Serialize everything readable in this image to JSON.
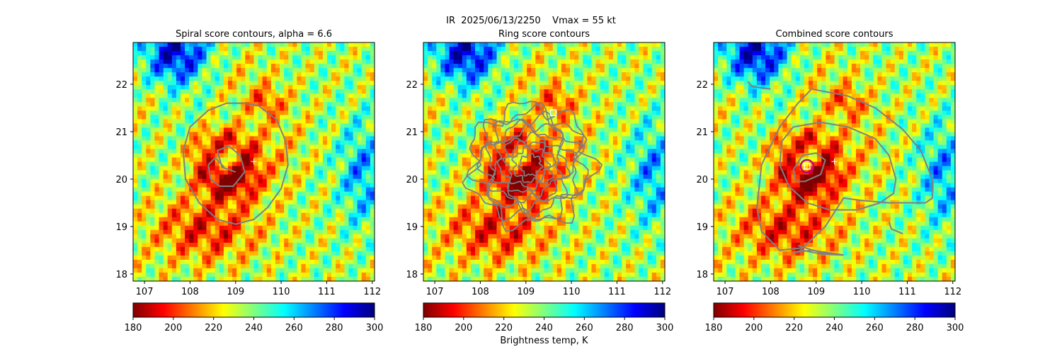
{
  "suptitle": "IR  2025/06/13/2250    Vmax = 55 kt",
  "colorbar_label": "Brightness temp, K",
  "colormap": [
    "#7f0000",
    "#ff0000",
    "#ff7f00",
    "#ffff00",
    "#7fff7f",
    "#00ffff",
    "#007fff",
    "#0000ff",
    "#00007f"
  ],
  "contour_color": "#808080",
  "marker_colors": {
    "center_plus": "#ffffff",
    "square": "#ffffff",
    "circle": "#c00080"
  },
  "chart_data": [
    {
      "type": "heatmap",
      "title": "Spiral score contours, alpha =  6.6",
      "xlim": [
        106.75,
        112.05
      ],
      "ylim": [
        17.85,
        22.88
      ],
      "x_ticks": [
        "107",
        "108",
        "109",
        "110",
        "111",
        "112"
      ],
      "y_ticks": [
        "18",
        "19",
        "20",
        "21",
        "22"
      ],
      "colorbar": {
        "min": 180,
        "max": 300,
        "ticks": [
          "180",
          "200",
          "220",
          "240",
          "260",
          "280",
          "300"
        ]
      },
      "markers": [
        {
          "type": "plus",
          "lon": 109.4,
          "lat": 20.37
        }
      ],
      "contours": [
        {
          "lon": [
            109.5,
            109.9,
            110.1,
            110.15,
            110.0,
            109.7,
            109.4,
            109.0,
            108.6,
            108.2,
            107.9,
            107.85,
            108.0,
            108.4,
            108.8,
            109.2,
            109.5
          ],
          "lat": [
            21.55,
            21.25,
            20.8,
            20.3,
            19.8,
            19.4,
            19.15,
            19.05,
            19.15,
            19.5,
            20.0,
            20.6,
            21.1,
            21.45,
            21.6,
            21.6,
            21.55
          ]
        },
        {
          "lon": [
            108.75,
            108.55,
            108.4,
            108.45,
            108.65,
            108.95,
            109.2,
            109.1,
            108.85,
            108.6,
            108.7,
            109.0
          ],
          "lat": [
            20.25,
            20.45,
            20.3,
            20.0,
            19.85,
            19.85,
            20.15,
            20.5,
            20.7,
            20.6,
            20.25,
            20.15
          ]
        }
      ]
    },
    {
      "type": "heatmap",
      "title": "Ring score contours",
      "xlim": [
        106.75,
        112.05
      ],
      "ylim": [
        17.85,
        22.88
      ],
      "x_ticks": [
        "107",
        "108",
        "109",
        "110",
        "111",
        "112"
      ],
      "y_ticks": [
        "18",
        "19",
        "20",
        "21",
        "22"
      ],
      "colorbar": {
        "min": 180,
        "max": 300,
        "ticks": [
          "180",
          "200",
          "220",
          "240",
          "260",
          "280",
          "300"
        ]
      },
      "markers": [
        {
          "type": "square",
          "lon": 109.6,
          "lat": 21.4
        }
      ],
      "ring_field": {
        "center_lon": 109.1,
        "center_lat": 20.3,
        "radius_deg": 1.3
      }
    },
    {
      "type": "heatmap",
      "title": "Combined score contours",
      "xlim": [
        106.75,
        112.05
      ],
      "ylim": [
        17.85,
        22.88
      ],
      "x_ticks": [
        "107",
        "108",
        "109",
        "110",
        "111",
        "112"
      ],
      "y_ticks": [
        "18",
        "19",
        "20",
        "21",
        "22"
      ],
      "colorbar": {
        "min": 180,
        "max": 300,
        "ticks": [
          "180",
          "200",
          "220",
          "240",
          "260",
          "280",
          "300"
        ]
      },
      "markers": [
        {
          "type": "plus",
          "lon": 109.4,
          "lat": 20.37
        },
        {
          "type": "square",
          "lon": 108.8,
          "lat": 20.27
        },
        {
          "type": "circle",
          "lon": 108.8,
          "lat": 20.27
        }
      ],
      "contours": [
        {
          "lon": [
            109.1,
            109.7,
            110.3,
            110.6,
            110.75,
            110.7,
            110.4,
            109.9,
            109.3,
            108.8,
            108.4,
            108.2,
            108.25,
            108.5,
            109.1
          ],
          "lat": [
            21.2,
            21.1,
            20.85,
            20.5,
            20.0,
            19.7,
            19.5,
            19.35,
            19.35,
            19.5,
            19.85,
            20.3,
            20.8,
            21.1,
            21.2
          ]
        },
        {
          "lon": [
            108.7,
            108.5,
            108.55,
            108.75,
            109.1,
            109.2,
            109.0,
            108.7
          ],
          "lat": [
            20.5,
            20.2,
            19.95,
            19.95,
            20.1,
            20.4,
            20.55,
            20.5
          ]
        },
        {
          "lon": [
            108.9,
            109.7,
            110.3,
            110.9,
            111.3,
            111.55,
            111.55,
            111.4,
            111.2,
            110.9,
            110.6,
            110.0,
            109.6,
            109.2,
            108.7,
            108.2,
            107.8,
            107.7,
            107.8,
            108.2,
            108.6,
            108.9
          ],
          "lat": [
            21.9,
            21.75,
            21.5,
            21.05,
            20.6,
            20.0,
            19.6,
            19.5,
            19.5,
            19.5,
            19.5,
            19.55,
            19.6,
            19.0,
            18.55,
            18.5,
            18.9,
            19.4,
            20.3,
            21.1,
            21.6,
            21.9
          ]
        },
        {
          "lon": [
            108.6,
            109.1,
            109.6
          ],
          "lat": [
            18.6,
            18.45,
            18.4
          ]
        },
        {
          "lon": [
            109.6,
            108.9,
            108.5,
            108.7,
            109.1,
            109.6
          ],
          "lat": [
            18.4,
            18.5,
            18.45,
            18.5,
            18.42,
            18.4
          ]
        },
        {
          "lon": [
            107.5,
            107.6,
            108.0
          ],
          "lat": [
            22.05,
            21.95,
            21.9
          ]
        },
        {
          "lon": [
            110.6,
            110.65,
            110.9
          ],
          "lat": [
            19.1,
            18.95,
            18.85
          ]
        }
      ]
    }
  ]
}
